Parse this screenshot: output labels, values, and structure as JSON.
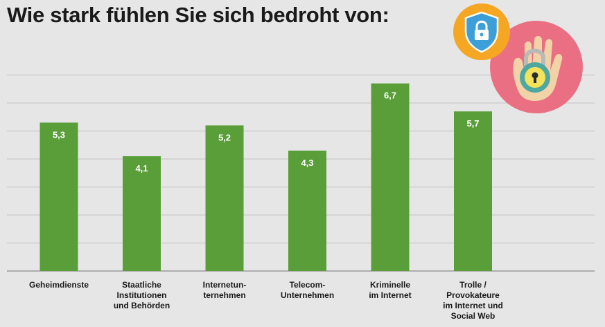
{
  "title": "Wie stark fühlen Sie sich bedroht von:",
  "colors": {
    "background": "#e6e6e6",
    "bar": "#5a9e3a",
    "grid": "#cdcdcd",
    "badge_orange": "#f5a623",
    "badge_pink": "#ea6f82"
  },
  "icons": [
    "shield-lock-icon",
    "hand-lock-icon"
  ],
  "chart_data": {
    "type": "bar",
    "title": "Wie stark fühlen Sie sich bedroht von:",
    "categories": [
      [
        "Geheimdienste"
      ],
      [
        "Staatliche",
        "Institutionen",
        "und Behörden"
      ],
      [
        "Internetun-",
        "ternehmen"
      ],
      [
        "Telecom-",
        "Unternehmen"
      ],
      [
        "Kriminelle",
        "im Internet"
      ],
      [
        "Trolle /",
        "Provokateure",
        "im Internet und",
        "Social Web"
      ]
    ],
    "values": [
      5.3,
      4.1,
      5.2,
      4.3,
      6.7,
      5.7
    ],
    "value_labels": [
      "5,3",
      "4,1",
      "5,2",
      "4,3",
      "6,7",
      "5,7"
    ],
    "ylim": [
      0,
      7
    ],
    "grid": true,
    "legend": "none"
  }
}
